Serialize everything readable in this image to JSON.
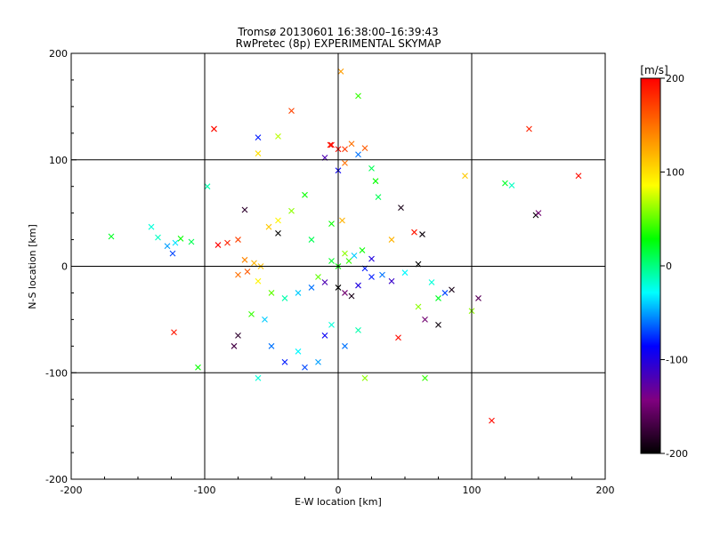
{
  "chart_data": {
    "type": "scatter",
    "title": "Tromsø 20130601 16:38:00–16:39:43",
    "subtitle": "RwPretec (8p) EXPERIMENTAL SKYMAP",
    "xlabel": "E-W location [km]",
    "ylabel": "N-S location [km]",
    "xlim": [
      -200,
      200
    ],
    "ylim": [
      -200,
      200
    ],
    "xticks": [
      "-200",
      "-100",
      "0",
      "100",
      "200"
    ],
    "yticks": [
      "-200",
      "-100",
      "0",
      "100",
      "200"
    ],
    "grid_x": [
      -100,
      0,
      100
    ],
    "grid_y": [
      -100,
      0,
      100
    ],
    "colorbar": {
      "label": "[m/s]",
      "range": [
        -200,
        200
      ],
      "ticks": [
        "200",
        "100",
        "0",
        "-100",
        "-200"
      ],
      "colors": [
        "#000000",
        "#800080",
        "#0000ff",
        "#00ffff",
        "#00ff00",
        "#ffff00",
        "#ff8000",
        "#ff0000"
      ]
    },
    "crosses": [
      {
        "x": -170,
        "y": 28,
        "v": 20
      },
      {
        "x": -140,
        "y": 37,
        "v": -20
      },
      {
        "x": -135,
        "y": 27,
        "v": -15
      },
      {
        "x": -128,
        "y": 19,
        "v": -50
      },
      {
        "x": -122,
        "y": 22,
        "v": -35
      },
      {
        "x": -118,
        "y": 26,
        "v": 30
      },
      {
        "x": -110,
        "y": 23,
        "v": 10
      },
      {
        "x": -124,
        "y": 12,
        "v": -70
      },
      {
        "x": -123,
        "y": -62,
        "v": 190
      },
      {
        "x": -98,
        "y": 75,
        "v": -10
      },
      {
        "x": -93,
        "y": 129,
        "v": 190
      },
      {
        "x": -93,
        "y": 129,
        "v": 195
      },
      {
        "x": -60,
        "y": 121,
        "v": -80
      },
      {
        "x": -35,
        "y": 146,
        "v": 170
      },
      {
        "x": -45,
        "y": 122,
        "v": 70
      },
      {
        "x": -60,
        "y": 106,
        "v": 100
      },
      {
        "x": -25,
        "y": 67,
        "v": 30
      },
      {
        "x": -35,
        "y": 52,
        "v": 60
      },
      {
        "x": -45,
        "y": 43,
        "v": 90
      },
      {
        "x": -52,
        "y": 37,
        "v": 110
      },
      {
        "x": -45,
        "y": 31,
        "v": -200
      },
      {
        "x": -70,
        "y": 53,
        "v": -180
      },
      {
        "x": -75,
        "y": 25,
        "v": 170
      },
      {
        "x": -83,
        "y": 22,
        "v": 185
      },
      {
        "x": -90,
        "y": 20,
        "v": 200
      },
      {
        "x": -70,
        "y": 6,
        "v": 140
      },
      {
        "x": -63,
        "y": 3,
        "v": 120
      },
      {
        "x": -58,
        "y": 0,
        "v": 115
      },
      {
        "x": -68,
        "y": -5,
        "v": 160
      },
      {
        "x": -75,
        "y": -8,
        "v": 150
      },
      {
        "x": -60,
        "y": -14,
        "v": 90
      },
      {
        "x": -50,
        "y": -25,
        "v": 50
      },
      {
        "x": -40,
        "y": -30,
        "v": -10
      },
      {
        "x": -30,
        "y": -25,
        "v": -40
      },
      {
        "x": -20,
        "y": -20,
        "v": -60
      },
      {
        "x": -10,
        "y": -15,
        "v": -120
      },
      {
        "x": 0,
        "y": -20,
        "v": -200
      },
      {
        "x": 5,
        "y": -25,
        "v": -150
      },
      {
        "x": 10,
        "y": -28,
        "v": -190
      },
      {
        "x": 15,
        "y": -18,
        "v": -100
      },
      {
        "x": 25,
        "y": -10,
        "v": -80
      },
      {
        "x": 33,
        "y": -8,
        "v": -60
      },
      {
        "x": 40,
        "y": -14,
        "v": -110
      },
      {
        "x": 50,
        "y": -6,
        "v": -30
      },
      {
        "x": 60,
        "y": 2,
        "v": -200
      },
      {
        "x": 63,
        "y": 30,
        "v": -195
      },
      {
        "x": 57,
        "y": 32,
        "v": 190
      },
      {
        "x": 47,
        "y": 55,
        "v": -190
      },
      {
        "x": 30,
        "y": 65,
        "v": 10
      },
      {
        "x": 28,
        "y": 80,
        "v": 30
      },
      {
        "x": 25,
        "y": 92,
        "v": 10
      },
      {
        "x": 15,
        "y": 105,
        "v": -60
      },
      {
        "x": 20,
        "y": 111,
        "v": 160
      },
      {
        "x": 10,
        "y": 115,
        "v": 150
      },
      {
        "x": 5,
        "y": 110,
        "v": 175
      },
      {
        "x": -5,
        "y": 114,
        "v": 200
      },
      {
        "x": -10,
        "y": 102,
        "v": -120
      },
      {
        "x": -6,
        "y": 114,
        "v": 190
      },
      {
        "x": 0,
        "y": 110,
        "v": 195
      },
      {
        "x": 0,
        "y": 90,
        "v": -90
      },
      {
        "x": 5,
        "y": 97,
        "v": 150
      },
      {
        "x": 3,
        "y": 43,
        "v": 120
      },
      {
        "x": 5,
        "y": 12,
        "v": 60
      },
      {
        "x": 8,
        "y": 5,
        "v": 40
      },
      {
        "x": 12,
        "y": 10,
        "v": -40
      },
      {
        "x": 18,
        "y": 15,
        "v": 30
      },
      {
        "x": -5,
        "y": 5,
        "v": 20
      },
      {
        "x": 0,
        "y": 0,
        "v": 30
      },
      {
        "x": 20,
        "y": -2,
        "v": -80
      },
      {
        "x": 25,
        "y": 7,
        "v": -100
      },
      {
        "x": 40,
        "y": 25,
        "v": 120
      },
      {
        "x": 2,
        "y": 183,
        "v": 130
      },
      {
        "x": 15,
        "y": 160,
        "v": 40
      },
      {
        "x": 60,
        "y": -38,
        "v": 60
      },
      {
        "x": 65,
        "y": -50,
        "v": -150
      },
      {
        "x": 70,
        "y": -15,
        "v": -20
      },
      {
        "x": 75,
        "y": -30,
        "v": 20
      },
      {
        "x": 80,
        "y": -25,
        "v": -70
      },
      {
        "x": 85,
        "y": -22,
        "v": -190
      },
      {
        "x": 95,
        "y": 85,
        "v": 110
      },
      {
        "x": 100,
        "y": -42,
        "v": 60
      },
      {
        "x": 105,
        "y": -30,
        "v": -160
      },
      {
        "x": 125,
        "y": 78,
        "v": 20
      },
      {
        "x": 130,
        "y": 76,
        "v": -15
      },
      {
        "x": 148,
        "y": 48,
        "v": -200
      },
      {
        "x": 150,
        "y": 50,
        "v": -150
      },
      {
        "x": 143,
        "y": 129,
        "v": 185
      },
      {
        "x": 180,
        "y": 85,
        "v": 195
      },
      {
        "x": 115,
        "y": -145,
        "v": 195
      },
      {
        "x": 45,
        "y": -67,
        "v": 195
      },
      {
        "x": 65,
        "y": -105,
        "v": 40
      },
      {
        "x": 75,
        "y": -55,
        "v": -195
      },
      {
        "x": -40,
        "y": -90,
        "v": -80
      },
      {
        "x": -50,
        "y": -75,
        "v": -60
      },
      {
        "x": -30,
        "y": -80,
        "v": -30
      },
      {
        "x": -25,
        "y": -95,
        "v": -70
      },
      {
        "x": -15,
        "y": -90,
        "v": -50
      },
      {
        "x": -10,
        "y": -65,
        "v": -90
      },
      {
        "x": -5,
        "y": -55,
        "v": -20
      },
      {
        "x": -55,
        "y": -50,
        "v": -40
      },
      {
        "x": -65,
        "y": -45,
        "v": 40
      },
      {
        "x": -75,
        "y": -65,
        "v": -180
      },
      {
        "x": -78,
        "y": -75,
        "v": -170
      },
      {
        "x": -105,
        "y": -95,
        "v": 30
      },
      {
        "x": -60,
        "y": -105,
        "v": -20
      },
      {
        "x": 20,
        "y": -105,
        "v": 60
      },
      {
        "x": 5,
        "y": -75,
        "v": -60
      },
      {
        "x": 15,
        "y": -60,
        "v": -10
      },
      {
        "x": -5,
        "y": 40,
        "v": 30
      },
      {
        "x": -20,
        "y": 25,
        "v": 10
      },
      {
        "x": -15,
        "y": -10,
        "v": 50
      }
    ]
  }
}
